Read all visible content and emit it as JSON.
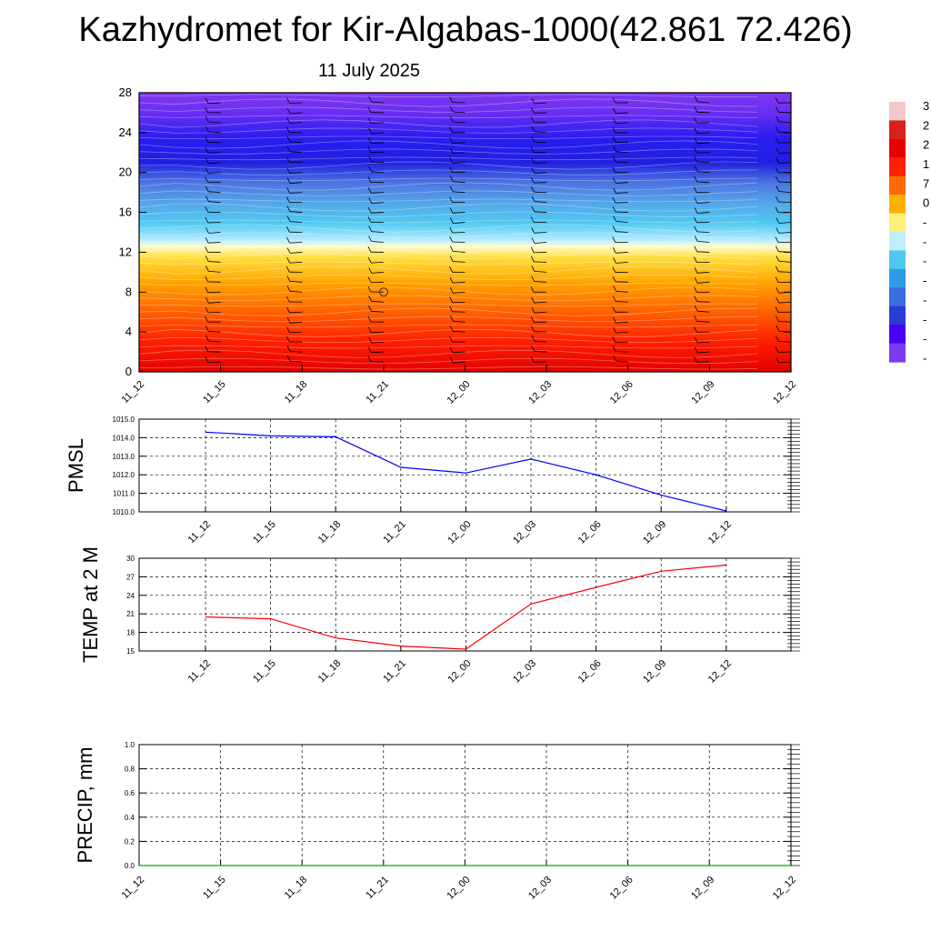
{
  "title": "Kazhydromet for Kir-Algabas-1000(42.861 72.426)",
  "subtitle": "11 July 2025",
  "chart_data": [
    {
      "type": "heatmap",
      "xlabel": "",
      "ylabel": "",
      "x_ticks": [
        "11_12",
        "11_15",
        "11_18",
        "11_21",
        "12_00",
        "12_03",
        "12_06",
        "12_09",
        "12_12"
      ],
      "y_ticks": [
        "0",
        "4",
        "8",
        "12",
        "16",
        "20",
        "24",
        "28"
      ],
      "ylim": [
        0,
        28
      ],
      "colorbar_labels": [
        "3",
        "2",
        "2",
        "1",
        "7",
        "0",
        "-",
        "-",
        "-",
        "-",
        "-",
        "-",
        "-",
        "-"
      ],
      "colorbar_colors": [
        "#f4c8c8",
        "#d92020",
        "#e60000",
        "#ff2000",
        "#ff6a00",
        "#ffb000",
        "#fff07a",
        "#bfeeff",
        "#4fc8f0",
        "#2f9be8",
        "#3a6ee0",
        "#2a3cd8",
        "#4a00f0",
        "#7a3cf0"
      ],
      "color_stops": [
        {
          "y": 0,
          "color": "#e30000"
        },
        {
          "y": 3,
          "color": "#ff1e00"
        },
        {
          "y": 6,
          "color": "#ff6000"
        },
        {
          "y": 9,
          "color": "#ffa500"
        },
        {
          "y": 11.5,
          "color": "#ffe040"
        },
        {
          "y": 12.6,
          "color": "#fffbd0"
        },
        {
          "y": 13.2,
          "color": "#b8ecff"
        },
        {
          "y": 15,
          "color": "#4ec8f2"
        },
        {
          "y": 17,
          "color": "#55a5e8"
        },
        {
          "y": 19,
          "color": "#4b74e0"
        },
        {
          "y": 21,
          "color": "#2020e0"
        },
        {
          "y": 23.5,
          "color": "#2a1cf0"
        },
        {
          "y": 26,
          "color": "#6a2ef2"
        },
        {
          "y": 28,
          "color": "#7f38f0"
        }
      ]
    },
    {
      "type": "line",
      "ylabel": "PMSL",
      "x_ticks": [
        "11_12",
        "11_15",
        "11_18",
        "11_21",
        "12_00",
        "12_03",
        "12_06",
        "12_09",
        "12_12"
      ],
      "y_ticks": [
        "1010.0",
        "1011.0",
        "1012.0",
        "1013.0",
        "1014.0",
        "1015.0"
      ],
      "ylim": [
        1010,
        1015
      ],
      "grid": true,
      "series": [
        {
          "color": "#0000ff",
          "values": [
            1014.3,
            1014.1,
            1014.05,
            1012.4,
            1012.1,
            1012.85,
            1012.0,
            1010.9,
            1010.05
          ]
        }
      ]
    },
    {
      "type": "line",
      "ylabel": "TEMP at 2 M",
      "x_ticks": [
        "11_12",
        "11_15",
        "11_18",
        "11_21",
        "12_00",
        "12_03",
        "12_06",
        "12_09",
        "12_12"
      ],
      "y_ticks": [
        "15",
        "18",
        "21",
        "24",
        "27",
        "30"
      ],
      "ylim": [
        15,
        30
      ],
      "grid": true,
      "series": [
        {
          "color": "#ff0000",
          "values": [
            20.5,
            20.2,
            17.1,
            15.8,
            15.3,
            22.6,
            25.3,
            27.9,
            28.9
          ]
        }
      ]
    },
    {
      "type": "line",
      "ylabel": "PRECIP, mm",
      "x_ticks": [
        "11_12",
        "11_15",
        "11_18",
        "11_21",
        "12_00",
        "12_03",
        "12_06",
        "12_09",
        "12_12"
      ],
      "y_ticks": [
        "0.0",
        "0.2",
        "0.4",
        "0.6",
        "0.8",
        "1.0"
      ],
      "ylim": [
        0,
        1
      ],
      "grid": true,
      "series": [
        {
          "color": "#00aa00",
          "values": [
            0,
            0,
            0,
            0,
            0,
            0,
            0,
            0,
            0
          ]
        }
      ]
    }
  ]
}
